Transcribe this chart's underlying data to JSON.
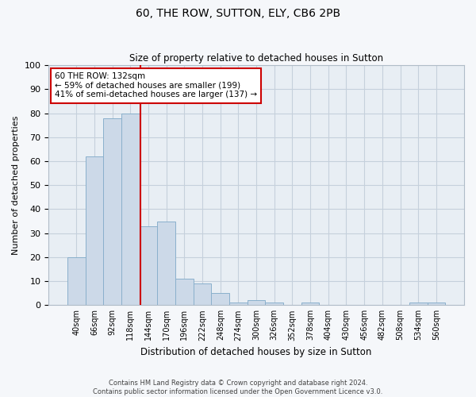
{
  "title": "60, THE ROW, SUTTON, ELY, CB6 2PB",
  "subtitle": "Size of property relative to detached houses in Sutton",
  "xlabel": "Distribution of detached houses by size in Sutton",
  "ylabel": "Number of detached properties",
  "bar_color": "#ccd9e8",
  "bar_edge_color": "#8ab0cc",
  "grid_color": "#c5d0dc",
  "bg_color": "#e8eef4",
  "fig_color": "#f5f7fa",
  "bin_labels": [
    "40sqm",
    "66sqm",
    "92sqm",
    "118sqm",
    "144sqm",
    "170sqm",
    "196sqm",
    "222sqm",
    "248sqm",
    "274sqm",
    "300sqm",
    "326sqm",
    "352sqm",
    "378sqm",
    "404sqm",
    "430sqm",
    "456sqm",
    "482sqm",
    "508sqm",
    "534sqm",
    "560sqm"
  ],
  "bar_heights": [
    20,
    62,
    78,
    80,
    33,
    35,
    11,
    9,
    5,
    1,
    2,
    1,
    0,
    1,
    0,
    0,
    0,
    0,
    0,
    1,
    1
  ],
  "ylim": [
    0,
    100
  ],
  "yticks": [
    0,
    10,
    20,
    30,
    40,
    50,
    60,
    70,
    80,
    90,
    100
  ],
  "vline_x": 3.54,
  "vline_color": "#cc0000",
  "annotation_title": "60 THE ROW: 132sqm",
  "annotation_line1": "← 59% of detached houses are smaller (199)",
  "annotation_line2": "41% of semi-detached houses are larger (137) →",
  "annotation_box_color": "#ffffff",
  "annotation_box_edge": "#cc0000",
  "footer_line1": "Contains HM Land Registry data © Crown copyright and database right 2024.",
  "footer_line2": "Contains public sector information licensed under the Open Government Licence v3.0."
}
